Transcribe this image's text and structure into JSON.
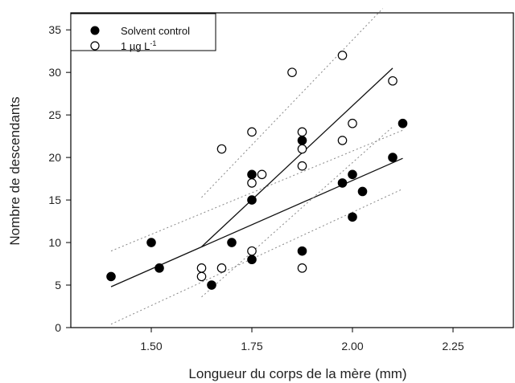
{
  "chart_data": {
    "type": "scatter",
    "xlabel": "Longueur du corps de la mère (mm)",
    "ylabel": "Nombre de descendants",
    "xlim": [
      1.3,
      2.4
    ],
    "ylim": [
      0,
      37
    ],
    "xticks": [
      1.5,
      1.75,
      2.0,
      2.25
    ],
    "xtick_labels": [
      "1.50",
      "1.75",
      "2.00",
      "2.25"
    ],
    "yticks": [
      0,
      5,
      10,
      15,
      20,
      25,
      30,
      35
    ],
    "ytick_labels": [
      "0",
      "5",
      "10",
      "15",
      "20",
      "25",
      "30",
      "35"
    ],
    "grid": false,
    "legend_position": "top-left",
    "legend": [
      {
        "label_main": "Solvent control",
        "label_sup": "",
        "marker": "filled"
      },
      {
        "label_main": "1 µg L",
        "label_sup": "-1",
        "marker": "open"
      }
    ],
    "series": [
      {
        "name": "Solvent control",
        "marker": "filled",
        "color": "#000000",
        "points": [
          [
            1.4,
            6
          ],
          [
            1.5,
            10
          ],
          [
            1.52,
            7
          ],
          [
            1.65,
            5
          ],
          [
            1.7,
            10
          ],
          [
            1.75,
            18
          ],
          [
            1.75,
            15
          ],
          [
            1.75,
            8
          ],
          [
            1.875,
            22
          ],
          [
            1.875,
            9
          ],
          [
            1.975,
            17
          ],
          [
            2.0,
            18
          ],
          [
            2.0,
            13
          ],
          [
            2.025,
            16
          ],
          [
            2.1,
            20
          ],
          [
            2.125,
            24
          ]
        ],
        "fit_line": [
          [
            1.4,
            4.8
          ],
          [
            2.125,
            19.9
          ]
        ],
        "ci_lines": [
          [
            [
              1.4,
              9.0
            ],
            [
              2.125,
              23.2
            ]
          ],
          [
            [
              1.4,
              0.4
            ],
            [
              2.125,
              16.3
            ]
          ]
        ]
      },
      {
        "name": "1 µg L-1",
        "marker": "open",
        "color": "#000000",
        "points": [
          [
            1.625,
            7
          ],
          [
            1.625,
            6
          ],
          [
            1.675,
            21
          ],
          [
            1.675,
            7
          ],
          [
            1.75,
            23
          ],
          [
            1.75,
            17
          ],
          [
            1.75,
            9
          ],
          [
            1.775,
            18
          ],
          [
            1.85,
            30
          ],
          [
            1.875,
            23
          ],
          [
            1.875,
            21
          ],
          [
            1.875,
            19
          ],
          [
            1.875,
            7
          ],
          [
            1.975,
            32
          ],
          [
            1.975,
            22
          ],
          [
            2.0,
            24
          ],
          [
            2.1,
            29
          ]
        ],
        "fit_line": [
          [
            1.625,
            9.5
          ],
          [
            2.1,
            30.5
          ]
        ],
        "ci_lines": [
          [
            [
              1.625,
              15.3
            ],
            [
              2.075,
              37.5
            ]
          ],
          [
            [
              1.625,
              3.6
            ],
            [
              2.1,
              23.6
            ]
          ]
        ]
      }
    ]
  }
}
